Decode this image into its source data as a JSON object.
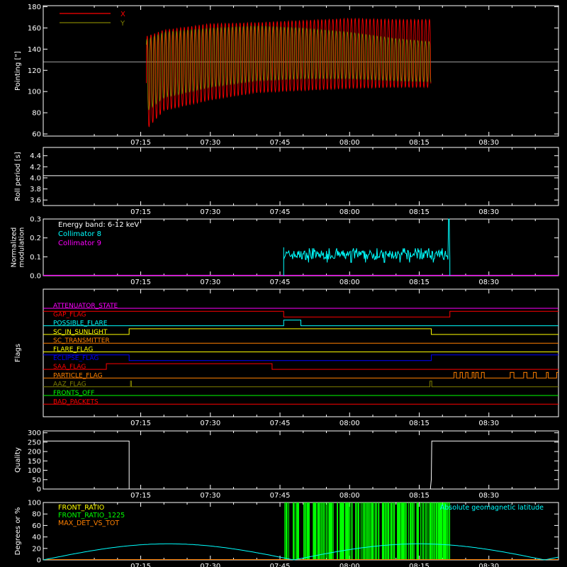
{
  "colors": {
    "background": "#000000",
    "axes": "#ffffff",
    "x_pointing": "#ff0000",
    "y_pointing": "#808000",
    "collimator_8": "#00ffff",
    "collimator_9": "#ff00ff",
    "front_ratio": "#ffff00",
    "front_ratio_1225": "#00ff00",
    "max_det_vs_tot": "#ff8000",
    "geomag_latitude": "#00ffff"
  },
  "time_axis": {
    "tick_labels": [
      "07:15",
      "07:30",
      "07:45",
      "08:00",
      "08:15",
      "08:30"
    ],
    "tick_minutes": [
      435,
      450,
      465,
      480,
      495,
      510
    ],
    "range_minutes": [
      414,
      525
    ]
  },
  "chart_data": [
    {
      "id": "pointing",
      "type": "line",
      "ylabel": "Pointing [\"]",
      "ylim": [
        58,
        181
      ],
      "yticks": [
        60,
        80,
        100,
        120,
        140,
        160,
        180
      ],
      "reference_line": 128,
      "legend": [
        "X",
        "Y"
      ],
      "series": [
        {
          "name": "X",
          "x_range": [
            436.2,
            497.5
          ],
          "center": [
            [
              436.2,
              108
            ],
            [
              440,
              120
            ],
            [
              450,
              128
            ],
            [
              460,
              132
            ],
            [
              470,
              134
            ],
            [
              480,
              136
            ],
            [
              490,
              136
            ],
            [
              497.5,
              136
            ]
          ],
          "amplitude": [
            [
              436.2,
              44
            ],
            [
              440,
              38
            ],
            [
              450,
              36
            ],
            [
              460,
              33
            ],
            [
              470,
              33
            ],
            [
              480,
              33
            ],
            [
              490,
              32
            ],
            [
              497.5,
              32
            ]
          ]
        },
        {
          "name": "Y",
          "x_range": [
            436.2,
            497.5
          ],
          "center": [
            [
              436.2,
              115
            ],
            [
              440,
              125
            ],
            [
              450,
              132
            ],
            [
              460,
              136
            ],
            [
              470,
              136
            ],
            [
              480,
              134
            ],
            [
              490,
              130
            ],
            [
              497.5,
              128
            ]
          ],
          "amplitude": [
            [
              436.2,
              34
            ],
            [
              440,
              31
            ],
            [
              450,
              28
            ],
            [
              460,
              26
            ],
            [
              470,
              24
            ],
            [
              480,
              22
            ],
            [
              490,
              20
            ],
            [
              497.5,
              19
            ]
          ]
        }
      ]
    },
    {
      "id": "roll",
      "type": "line",
      "ylabel": "Roll period [s]",
      "ylim": [
        3.5,
        4.55
      ],
      "yticks": [
        3.6,
        3.8,
        4.0,
        4.2,
        4.4
      ],
      "series": [
        {
          "name": "",
          "x": [
            414,
            525
          ],
          "y": [
            4.04,
            4.04
          ]
        }
      ]
    },
    {
      "id": "modulation",
      "type": "line",
      "ylabel": [
        "Normalized",
        "modulation"
      ],
      "ylim": [
        0,
        0.3
      ],
      "yticks": [
        0.0,
        0.1,
        0.2,
        0.3
      ],
      "annotation": "Energy band: 6-12 keV",
      "legend": [
        "Collimator 8",
        "Collimator 9"
      ],
      "series": [
        {
          "name": "Collimator 8",
          "x_range": [
            465.8,
            501.6
          ],
          "mean": 0.11,
          "spike": {
            "x": 501.4,
            "y": 0.3
          }
        },
        {
          "name": "Collimator 9",
          "x": [
            414,
            525
          ],
          "y": [
            0.0,
            0.0
          ]
        }
      ]
    },
    {
      "id": "flags",
      "type": "line",
      "ylabel": "Flags",
      "rows": [
        {
          "name": "ATTENUATOR_STATE",
          "color": "#ff00ff",
          "steps": [
            [
              414,
              0
            ],
            [
              525,
              0
            ]
          ]
        },
        {
          "name": "GAP_FLAG",
          "color": "#ff0000",
          "steps": [
            [
              414,
              1
            ],
            [
              465.8,
              0
            ],
            [
              501.6,
              1
            ],
            [
              525,
              1
            ]
          ]
        },
        {
          "name": "POSSIBLE_FLARE",
          "color": "#00ffff",
          "steps": [
            [
              414,
              0
            ],
            [
              465.8,
              1
            ],
            [
              469.5,
              0
            ],
            [
              525,
              0
            ]
          ]
        },
        {
          "name": "SC_IN_SUNLIGHT",
          "color": "#ffff00",
          "steps": [
            [
              414,
              0
            ],
            [
              432.5,
              1
            ],
            [
              497.6,
              0
            ],
            [
              525,
              0
            ]
          ]
        },
        {
          "name": "SC_TRANSMITTER",
          "color": "#ff8000",
          "steps": [
            [
              414,
              0
            ],
            [
              525,
              0
            ]
          ]
        },
        {
          "name": "FLARE_FLAG",
          "color": "#ffff00",
          "steps": [
            [
              414,
              0
            ],
            [
              525,
              0
            ]
          ]
        },
        {
          "name": "ECLIPSE_FLAG",
          "color": "#0000ff",
          "steps": [
            [
              414,
              1
            ],
            [
              432.5,
              0
            ],
            [
              497.6,
              1
            ],
            [
              525,
              1
            ]
          ]
        },
        {
          "name": "SAA_FLAG",
          "color": "#ff0000",
          "steps": [
            [
              414,
              0
            ],
            [
              427.6,
              1
            ],
            [
              463.3,
              0
            ],
            [
              525,
              0
            ]
          ]
        },
        {
          "name": "PARTICLE_FLAG",
          "color": "#ff8000",
          "steps": [
            [
              414,
              0
            ],
            [
              502.5,
              1
            ],
            [
              503,
              0
            ],
            [
              503.8,
              1
            ],
            [
              504.3,
              0
            ],
            [
              505,
              1
            ],
            [
              505.5,
              0
            ],
            [
              506.4,
              1
            ],
            [
              506.8,
              0
            ],
            [
              507.2,
              1
            ],
            [
              507.7,
              0
            ],
            [
              508.4,
              1
            ],
            [
              509,
              0
            ],
            [
              514.6,
              1
            ],
            [
              515.4,
              0
            ],
            [
              517.5,
              1
            ],
            [
              518.2,
              0
            ],
            [
              519.6,
              1
            ],
            [
              520.2,
              0
            ],
            [
              522.4,
              1
            ],
            [
              522.8,
              0
            ],
            [
              524.6,
              1
            ],
            [
              525,
              1
            ]
          ]
        },
        {
          "name": "AAZ_FLAG",
          "color": "#808000",
          "steps": [
            [
              414,
              0
            ],
            [
              432.8,
              1
            ],
            [
              433,
              0
            ],
            [
              497.3,
              1
            ],
            [
              497.7,
              0
            ],
            [
              525,
              0
            ]
          ]
        },
        {
          "name": "FRONTS_OFF",
          "color": "#00ff00",
          "steps": [
            [
              414,
              0
            ],
            [
              525,
              0
            ]
          ]
        },
        {
          "name": "BAD_PACKETS",
          "color": "#ff0000",
          "steps": [
            [
              414,
              0
            ],
            [
              525,
              0
            ]
          ]
        }
      ]
    },
    {
      "id": "quality",
      "type": "line",
      "ylabel": "Quality",
      "ylim": [
        0,
        310
      ],
      "yticks": [
        0,
        50,
        100,
        150,
        200,
        250,
        300
      ],
      "series": [
        {
          "name": "",
          "x": [
            414,
            432.5,
            432.5,
            497.4,
            497.6,
            497.7,
            525
          ],
          "y": [
            256,
            256,
            0,
            0,
            50,
            256,
            256
          ]
        }
      ]
    },
    {
      "id": "geo",
      "type": "line",
      "ylabel": "Degrees or %",
      "ylim": [
        0,
        100
      ],
      "yticks": [
        0,
        20,
        40,
        60,
        80,
        100
      ],
      "legend": [
        "FRONT_RATIO",
        "FRONT_RATIO_1225",
        "MAX_DET_VS_TOT"
      ],
      "label_right": "Absolute geomagnetic latitude",
      "front_ratio_1225_span": [
        465.8,
        501.6
      ],
      "latitude": {
        "minima": [
          414,
          468
        ],
        "peak": 28,
        "period_minutes": 108
      }
    }
  ]
}
